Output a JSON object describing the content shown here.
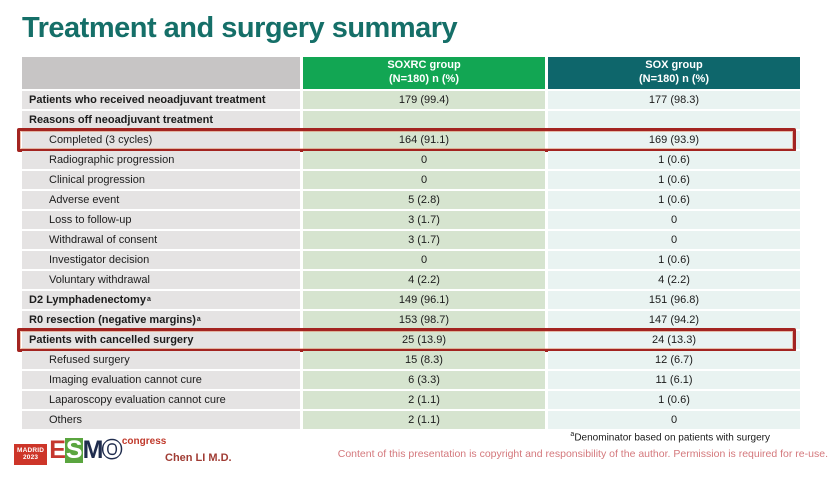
{
  "title": "Treatment and surgery summary",
  "colors": {
    "title": "#156f68",
    "soxrc_header_bg": "#12a653",
    "sox_header_bg": "#0e666b",
    "label_col_bg": "#e5e3e3",
    "soxrc_col_bg": "#d6e4cf",
    "sox_col_bg": "#e9f3f1",
    "highlight_border": "#a32420",
    "copyright_text": "#d4787c"
  },
  "table": {
    "columns": [
      {
        "name": "SOXRC group",
        "sub": "(N=180)  n (%)"
      },
      {
        "name": "SOX group",
        "sub": "(N=180)  n (%)"
      }
    ],
    "rows": [
      {
        "label": "Patients who received neoadjuvant treatment",
        "bold": true,
        "indent": false,
        "soxrc": "179 (99.4)",
        "sox": "177 (98.3)",
        "highlight": false
      },
      {
        "label": "Reasons off neoadjuvant treatment",
        "bold": true,
        "indent": false,
        "soxrc": "",
        "sox": "",
        "highlight": false
      },
      {
        "label": "Completed (3 cycles)",
        "bold": false,
        "indent": true,
        "soxrc": "164 (91.1)",
        "sox": "169 (93.9)",
        "highlight": true
      },
      {
        "label": "Radiographic progression",
        "bold": false,
        "indent": true,
        "soxrc": "0",
        "sox": "1 (0.6)",
        "highlight": false
      },
      {
        "label": "Clinical progression",
        "bold": false,
        "indent": true,
        "soxrc": "0",
        "sox": "1 (0.6)",
        "highlight": false
      },
      {
        "label": "Adverse event",
        "bold": false,
        "indent": true,
        "soxrc": "5 (2.8)",
        "sox": "1 (0.6)",
        "highlight": false
      },
      {
        "label": "Loss to follow-up",
        "bold": false,
        "indent": true,
        "soxrc": "3 (1.7)",
        "sox": "0",
        "highlight": false
      },
      {
        "label": "Withdrawal of consent",
        "bold": false,
        "indent": true,
        "soxrc": "3 (1.7)",
        "sox": "0",
        "highlight": false
      },
      {
        "label": "Investigator decision",
        "bold": false,
        "indent": true,
        "soxrc": "0",
        "sox": "1 (0.6)",
        "highlight": false
      },
      {
        "label": "Voluntary withdrawal",
        "bold": false,
        "indent": true,
        "soxrc": "4 (2.2)",
        "sox": "4 (2.2)",
        "highlight": false
      },
      {
        "label": "D2 Lymphadenectomy",
        "sup": "a",
        "bold": true,
        "indent": false,
        "soxrc": "149 (96.1)",
        "sox": "151 (96.8)",
        "highlight": false
      },
      {
        "label": "R0 resection (negative margins)",
        "sup": "a",
        "bold": true,
        "indent": false,
        "soxrc": "153 (98.7)",
        "sox": "147 (94.2)",
        "highlight": false
      },
      {
        "label": "Patients with cancelled surgery",
        "bold": true,
        "indent": false,
        "soxrc": "25 (13.9)",
        "sox": "24 (13.3)",
        "highlight": true
      },
      {
        "label": "Refused surgery",
        "bold": false,
        "indent": true,
        "soxrc": "15 (8.3)",
        "sox": "12 (6.7)",
        "highlight": false
      },
      {
        "label": "Imaging evaluation cannot cure",
        "bold": false,
        "indent": true,
        "soxrc": "6 (3.3)",
        "sox": "11 (6.1)",
        "highlight": false
      },
      {
        "label": "Laparoscopy evaluation cannot cure",
        "bold": false,
        "indent": true,
        "soxrc": "2 (1.1)",
        "sox": "1 (0.6)",
        "highlight": false
      },
      {
        "label": "Others",
        "bold": false,
        "indent": true,
        "soxrc": "2 (1.1)",
        "sox": "0",
        "highlight": false
      }
    ]
  },
  "footer": {
    "footnote_sup": "a",
    "footnote_text": "Denominator based on patients with surgery",
    "author": "Chen LI M.D.",
    "copyright": "Content of this presentation is copyright and responsibility of the author. Permission is required for re-use.",
    "logo": {
      "madrid": "MADRID",
      "year": "2023",
      "letters": [
        "E",
        "S",
        "M",
        "O"
      ],
      "congress": "congress"
    }
  }
}
